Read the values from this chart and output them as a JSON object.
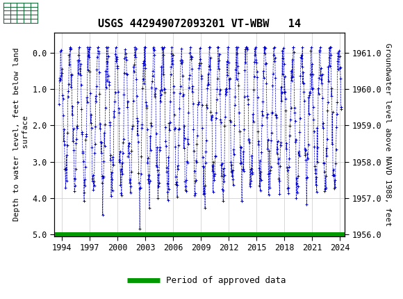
{
  "title": "USGS 442949072093201 VT-WBW   14",
  "ylabel_left": "Depth to water level, feet below land\n surface",
  "ylabel_right": "Groundwater level above NAVD 1988, feet",
  "ylim_left": [
    5.05,
    -0.55
  ],
  "ylim_right": [
    1955.95,
    1961.55
  ],
  "xlim": [
    1993.2,
    2024.5
  ],
  "yticks_left": [
    0.0,
    1.0,
    2.0,
    3.0,
    4.0,
    5.0
  ],
  "yticks_right": [
    1956.0,
    1957.0,
    1958.0,
    1959.0,
    1960.0,
    1961.0
  ],
  "xticks": [
    1994,
    1997,
    2000,
    2003,
    2006,
    2009,
    2012,
    2015,
    2018,
    2021,
    2024
  ],
  "header_color": "#1a6b3c",
  "header_text_color": "#ffffff",
  "data_color": "#0000cc",
  "approved_color": "#009900",
  "legend_label": "Period of approved data",
  "title_fontsize": 11,
  "axis_fontsize": 8,
  "tick_fontsize": 8.5,
  "legend_fontsize": 9
}
